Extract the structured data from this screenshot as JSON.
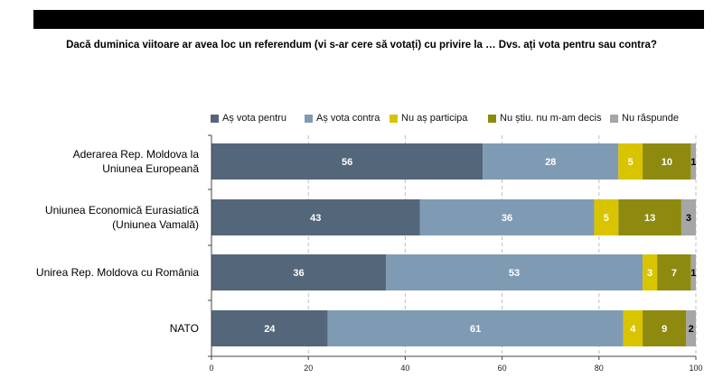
{
  "title": "Dacă duminica viitoare ar avea loc un referendum (vi s-ar cere să votați) cu privire la … Dvs. ați vota pentru sau contra?",
  "chart_data": {
    "type": "bar",
    "orientation": "horizontal",
    "stacked": true,
    "categories": [
      [
        "Aderarea Rep. Moldova la",
        "Uniunea Europeană"
      ],
      [
        "Uniunea Economică Eurasiatică",
        "(Uniunea Vamală)"
      ],
      [
        "Unirea Rep. Moldova cu România"
      ],
      [
        "NATO"
      ]
    ],
    "series": [
      {
        "name": "Aș vota pentru",
        "color": "#54667a",
        "values": [
          56,
          43,
          36,
          24
        ]
      },
      {
        "name": "Aș vota contra",
        "color": "#7f9bb3",
        "values": [
          28,
          36,
          53,
          61
        ]
      },
      {
        "name": "Nu aș participa",
        "color": "#d9c400",
        "values": [
          5,
          5,
          3,
          4
        ]
      },
      {
        "name": "Nu știu. nu m-am decis",
        "color": "#8e8a10",
        "values": [
          10,
          13,
          7,
          9
        ]
      },
      {
        "name": "Nu răspunde",
        "color": "#a6a6a6",
        "values": [
          1,
          3,
          1,
          2
        ]
      }
    ],
    "xlim": [
      0,
      100
    ],
    "xticks": [
      "0",
      "20",
      "40",
      "60",
      "80",
      "100"
    ],
    "grid": true,
    "legend_position": "top"
  }
}
